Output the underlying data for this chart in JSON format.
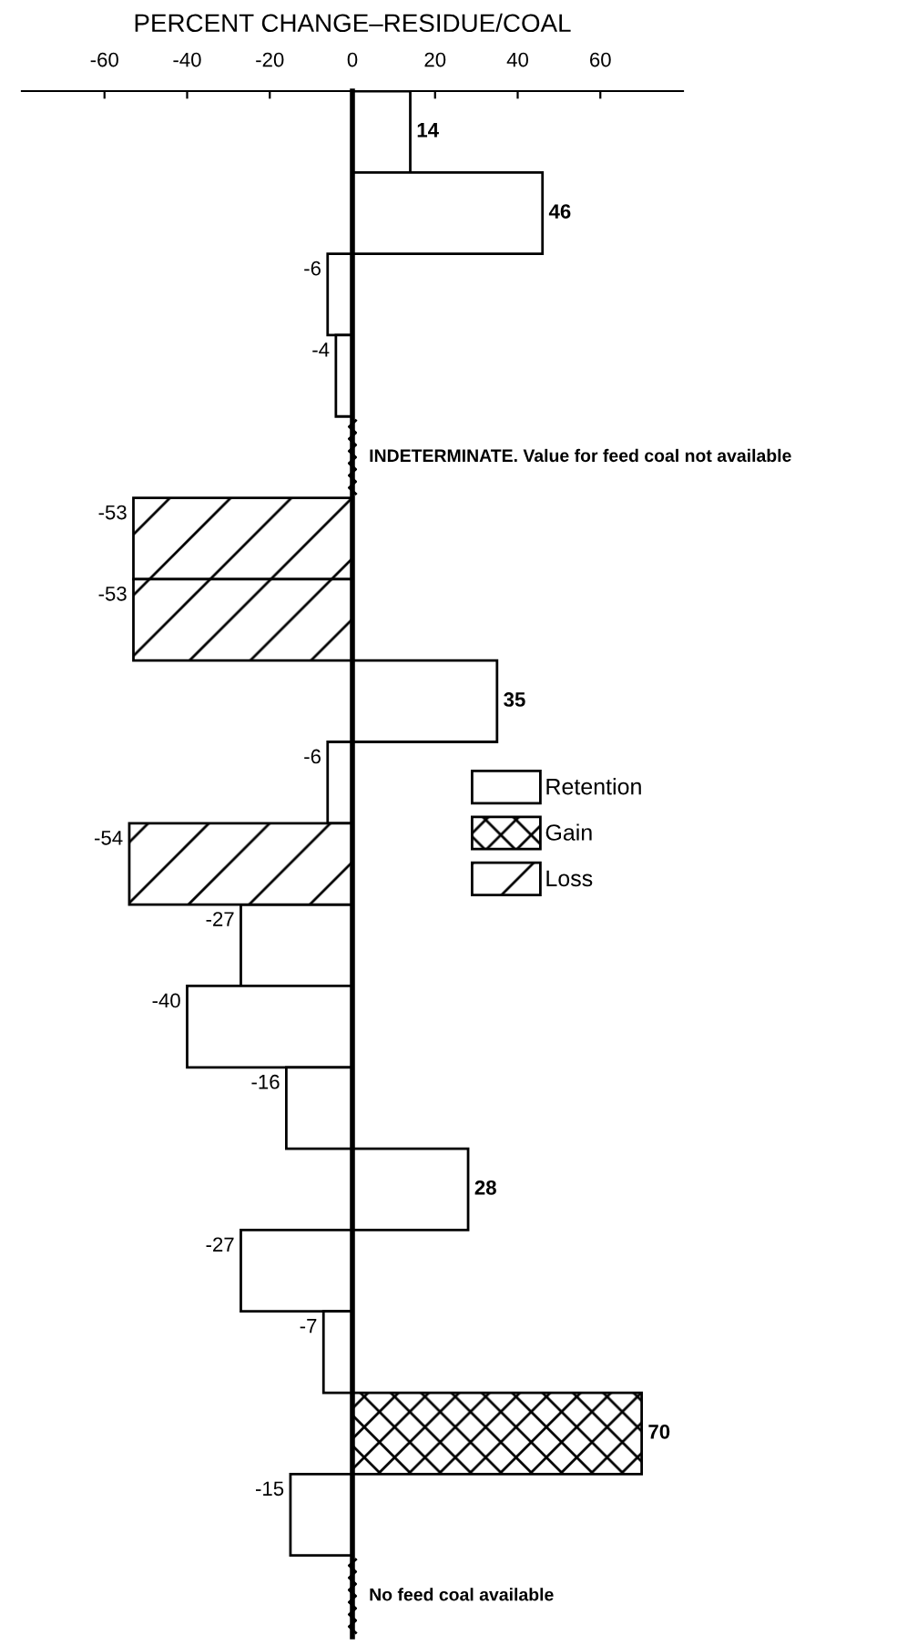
{
  "chart_data": {
    "type": "bar",
    "orientation": "horizontal",
    "xlabel": "PERCENT CHANGE–RESIDUE/COAL",
    "categories": [
      null,
      null,
      null,
      null,
      null,
      null,
      null,
      null,
      null,
      null,
      null,
      null,
      null,
      null,
      null,
      null,
      null,
      null,
      null
    ],
    "series": [
      {
        "name": "Retention",
        "color": "#ffffff",
        "values": [
          14,
          46,
          -6,
          -4,
          null,
          null,
          null,
          35,
          -6,
          null,
          -27,
          -40,
          -16,
          28,
          -27,
          -7,
          null,
          -15,
          null
        ]
      },
      {
        "name": "Gain",
        "color": "#000000",
        "values": [
          null,
          null,
          null,
          null,
          null,
          null,
          null,
          null,
          null,
          null,
          null,
          null,
          null,
          null,
          null,
          null,
          70,
          null,
          null
        ]
      },
      {
        "name": "Loss",
        "color": "#000000",
        "values": [
          null,
          null,
          null,
          null,
          null,
          -53,
          -53,
          null,
          null,
          -54,
          null,
          null,
          null,
          null,
          null,
          null,
          null,
          null,
          null
        ]
      }
    ],
    "xlim": [
      -80,
      80
    ],
    "xticks": [
      -60,
      -40,
      -20,
      0,
      20,
      40,
      60
    ],
    "data_labels": true,
    "legend": "right",
    "annotations": [
      "INDETERMINATE. Value for feed coal not available",
      "No feed coal available"
    ]
  }
}
